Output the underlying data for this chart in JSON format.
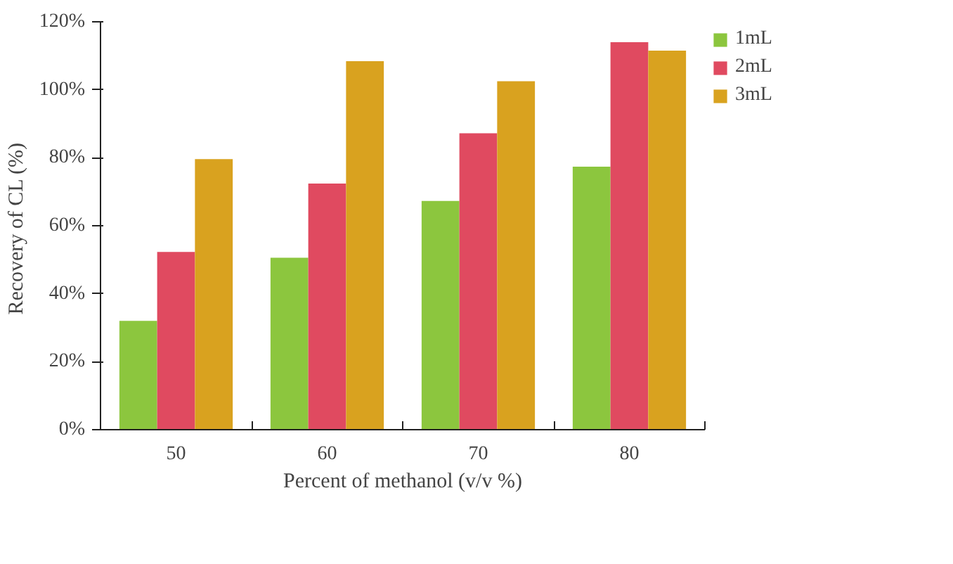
{
  "chart_data": {
    "type": "bar",
    "xlabel": "Percent of methanol (v/v %)",
    "ylabel": "Recovery of  CL (%)",
    "categories": [
      "50",
      "60",
      "70",
      "80"
    ],
    "series": [
      {
        "name": "1mL",
        "color": "#8cc63e",
        "values": [
          32,
          50.6,
          67.3,
          77.4
        ]
      },
      {
        "name": "2mL",
        "color": "#e04a60",
        "values": [
          52.3,
          72.4,
          87.2,
          114
        ]
      },
      {
        "name": "3mL",
        "color": "#d9a21f",
        "values": [
          79.6,
          108.4,
          102.5,
          111.5
        ]
      }
    ],
    "ylim": [
      0,
      120
    ],
    "yticks": [
      {
        "value": 0,
        "label": "0%"
      },
      {
        "value": 20,
        "label": "20%"
      },
      {
        "value": 40,
        "label": "40%"
      },
      {
        "value": 60,
        "label": "60%"
      },
      {
        "value": 80,
        "label": "80%"
      },
      {
        "value": 100,
        "label": "100%"
      },
      {
        "value": 120,
        "label": "120%"
      }
    ],
    "grid": false,
    "legend": "right"
  }
}
